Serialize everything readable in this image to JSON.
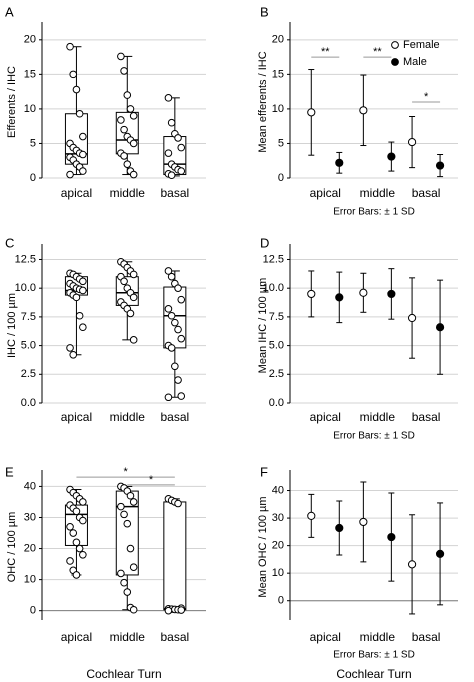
{
  "figure": {
    "panels": [
      {
        "id": "panel-a",
        "letter": "A"
      },
      {
        "id": "panel-b",
        "letter": "B"
      },
      {
        "id": "panel-c",
        "letter": "C"
      },
      {
        "id": "panel-d",
        "letter": "D"
      },
      {
        "id": "panel-e",
        "letter": "E"
      },
      {
        "id": "panel-f",
        "letter": "F"
      }
    ],
    "bottom_labels": [
      "Cochlear Turn",
      "Cochlear Turn"
    ]
  },
  "chart_data": [
    {
      "id": "A",
      "type": "box",
      "ylabel": "Efferents / IHC",
      "xlabel": "",
      "categories": [
        "apical",
        "middle",
        "basal"
      ],
      "ylim": [
        0,
        22
      ],
      "yticks": [
        0,
        5,
        10,
        15,
        20
      ],
      "gridlines": [
        0,
        5,
        10,
        15,
        20
      ],
      "boxes": [
        {
          "category": "apical",
          "min": 0.5,
          "q1": 2.0,
          "median": 3.5,
          "q3": 9.3,
          "max": 19.0
        },
        {
          "category": "middle",
          "min": 0.5,
          "q1": 3.5,
          "median": 5.5,
          "q3": 9.5,
          "max": 17.6
        },
        {
          "category": "basal",
          "min": 0.3,
          "q1": 0.5,
          "median": 2.0,
          "q3": 6.0,
          "max": 11.6
        }
      ],
      "points": [
        {
          "category": "apical",
          "values": [
            19.0,
            15.0,
            12.8,
            9.3,
            6.0,
            5.0,
            4.4,
            4.0,
            3.6,
            3.4,
            3.0,
            2.6,
            2.0,
            1.6,
            1.0,
            0.5
          ]
        },
        {
          "category": "middle",
          "values": [
            17.6,
            15.5,
            12.0,
            10.0,
            9.0,
            8.4,
            7.0,
            6.0,
            5.5,
            5.0,
            3.6,
            3.2,
            2.0,
            1.0,
            0.5
          ]
        },
        {
          "category": "basal",
          "values": [
            11.6,
            8.0,
            6.4,
            5.8,
            4.4,
            3.6,
            2.0,
            1.6,
            1.2,
            1.0,
            0.6,
            0.4
          ]
        }
      ]
    },
    {
      "id": "B",
      "type": "errorbar",
      "ylabel": "Mean efferents / IHC",
      "xlabel": "",
      "note": "Error Bars: ± 1 SD",
      "categories": [
        "apical",
        "middle",
        "basal"
      ],
      "ylim": [
        0,
        22
      ],
      "yticks": [
        0,
        5,
        10,
        15,
        20
      ],
      "gridlines": [
        0,
        5,
        10,
        15,
        20
      ],
      "legend": {
        "position": "top-right",
        "entries": [
          "Female",
          "Male"
        ]
      },
      "series": [
        {
          "name": "Female",
          "marker": "open",
          "means": [
            9.5,
            9.8,
            5.2
          ],
          "sd": [
            6.2,
            5.1,
            3.7
          ]
        },
        {
          "name": "Male",
          "marker": "filled",
          "means": [
            2.2,
            3.1,
            1.8
          ],
          "sd": [
            1.5,
            2.1,
            1.6
          ]
        }
      ],
      "significance": [
        {
          "category": "apical",
          "label": "**",
          "y": 17.5
        },
        {
          "category": "middle",
          "label": "**",
          "y": 17.5
        },
        {
          "category": "basal",
          "label": "*",
          "y": 11.0
        }
      ]
    },
    {
      "id": "C",
      "type": "box",
      "ylabel": "IHC / 100 µm",
      "xlabel": "",
      "categories": [
        "apical",
        "middle",
        "basal"
      ],
      "ylim": [
        0,
        13.5
      ],
      "yticks": [
        0.0,
        2.5,
        5.0,
        7.5,
        10.0,
        12.5
      ],
      "ytick_labels": [
        "0.0",
        "2.5",
        "5.0",
        "7.5",
        "10.0",
        "12.5"
      ],
      "gridlines": [
        0,
        2.5,
        5,
        7.5,
        10,
        12.5
      ],
      "boxes": [
        {
          "category": "apical",
          "min": 4.2,
          "q1": 9.4,
          "median": 9.8,
          "q3": 11.0,
          "max": 11.3
        },
        {
          "category": "middle",
          "min": 5.5,
          "q1": 8.5,
          "median": 9.6,
          "q3": 11.0,
          "max": 12.3
        },
        {
          "category": "basal",
          "min": 0.5,
          "q1": 4.8,
          "median": 7.6,
          "q3": 10.1,
          "max": 11.5
        }
      ],
      "points": [
        {
          "category": "apical",
          "values": [
            11.3,
            11.2,
            11.0,
            10.8,
            10.6,
            10.4,
            10.2,
            10.0,
            9.9,
            9.8,
            9.6,
            9.4,
            9.2,
            7.6,
            6.6,
            4.8,
            4.2
          ]
        },
        {
          "category": "middle",
          "values": [
            12.3,
            12.1,
            11.8,
            11.5,
            11.2,
            11.0,
            10.6,
            10.0,
            9.6,
            9.2,
            8.8,
            8.5,
            8.2,
            7.8,
            5.5
          ]
        },
        {
          "category": "basal",
          "values": [
            11.5,
            11.0,
            10.4,
            10.0,
            9.0,
            8.2,
            7.6,
            7.0,
            6.4,
            5.6,
            5.0,
            4.8,
            3.2,
            2.0,
            0.6,
            0.5
          ]
        }
      ]
    },
    {
      "id": "D",
      "type": "errorbar",
      "ylabel": "Mean IHC / 100 µm",
      "xlabel": "",
      "note": "Error Bars: ± 1 SD",
      "categories": [
        "apical",
        "middle",
        "basal"
      ],
      "ylim": [
        0,
        13.5
      ],
      "yticks": [
        0.0,
        2.5,
        5.0,
        7.5,
        10.0,
        12.5
      ],
      "ytick_labels": [
        "0.0",
        "2.5",
        "5.0",
        "7.5",
        "10.0",
        "12.5"
      ],
      "gridlines": [
        0,
        2.5,
        5,
        7.5,
        10,
        12.5
      ],
      "series": [
        {
          "name": "Female",
          "marker": "open",
          "means": [
            9.5,
            9.6,
            7.4
          ],
          "sd": [
            2.0,
            1.7,
            3.5
          ]
        },
        {
          "name": "Male",
          "marker": "filled",
          "means": [
            9.2,
            9.5,
            6.6
          ],
          "sd": [
            2.2,
            2.2,
            4.1
          ]
        }
      ]
    },
    {
      "id": "E",
      "type": "box",
      "ylabel": "OHC / 100 µm",
      "xlabel": "",
      "categories": [
        "apical",
        "middle",
        "basal"
      ],
      "ylim": [
        -3,
        44
      ],
      "yticks": [
        0,
        10,
        20,
        30,
        40
      ],
      "gridlines": [
        0,
        10,
        20,
        30,
        40
      ],
      "boxes": [
        {
          "category": "apical",
          "min": 11.5,
          "q1": 21.0,
          "median": 31.0,
          "q3": 34.0,
          "max": 39.0
        },
        {
          "category": "middle",
          "min": 0.3,
          "q1": 11.5,
          "median": 33.5,
          "q3": 38.5,
          "max": 40.0
        },
        {
          "category": "basal",
          "min": 0.0,
          "q1": 0.3,
          "median": 0.6,
          "q3": 35.0,
          "max": 36.0
        }
      ],
      "points": [
        {
          "category": "apical",
          "values": [
            39.0,
            38.0,
            37.0,
            36.0,
            35.0,
            34.0,
            33.0,
            32.0,
            30.0,
            29.0,
            27.0,
            25.0,
            22.0,
            20.0,
            18.0,
            16.0,
            13.0,
            11.5
          ]
        },
        {
          "category": "middle",
          "values": [
            40.0,
            39.5,
            38.5,
            37.0,
            35.0,
            33.5,
            31.0,
            28.0,
            20.0,
            14.0,
            12.0,
            9.0,
            6.0,
            1.0,
            0.3
          ]
        },
        {
          "category": "basal",
          "values": [
            36.0,
            35.5,
            35.0,
            34.5,
            0.8,
            0.6,
            0.5,
            0.4,
            0.3,
            0.2,
            0.0
          ]
        }
      ],
      "significance": [
        {
          "from": "apical",
          "to": "basal",
          "label": "*",
          "y": 43.0
        },
        {
          "from": "middle",
          "to": "basal",
          "label": "*",
          "y": 40.5
        }
      ]
    },
    {
      "id": "F",
      "type": "errorbar",
      "ylabel": "Mean OHC / 100 µm",
      "xlabel": "",
      "note": "Error Bars: ± 1 SD",
      "categories": [
        "apical",
        "middle",
        "basal"
      ],
      "ylim": [
        -7,
        46
      ],
      "yticks": [
        0,
        10,
        20,
        30,
        40
      ],
      "gridlines": [
        0,
        10,
        20,
        30,
        40
      ],
      "series": [
        {
          "name": "Female",
          "marker": "open",
          "means": [
            30.8,
            28.6,
            13.2
          ],
          "sd": [
            7.8,
            14.5,
            18.0
          ]
        },
        {
          "name": "Male",
          "marker": "filled",
          "means": [
            26.4,
            23.1,
            17.0
          ],
          "sd": [
            9.8,
            16.0,
            18.5
          ]
        }
      ]
    }
  ]
}
